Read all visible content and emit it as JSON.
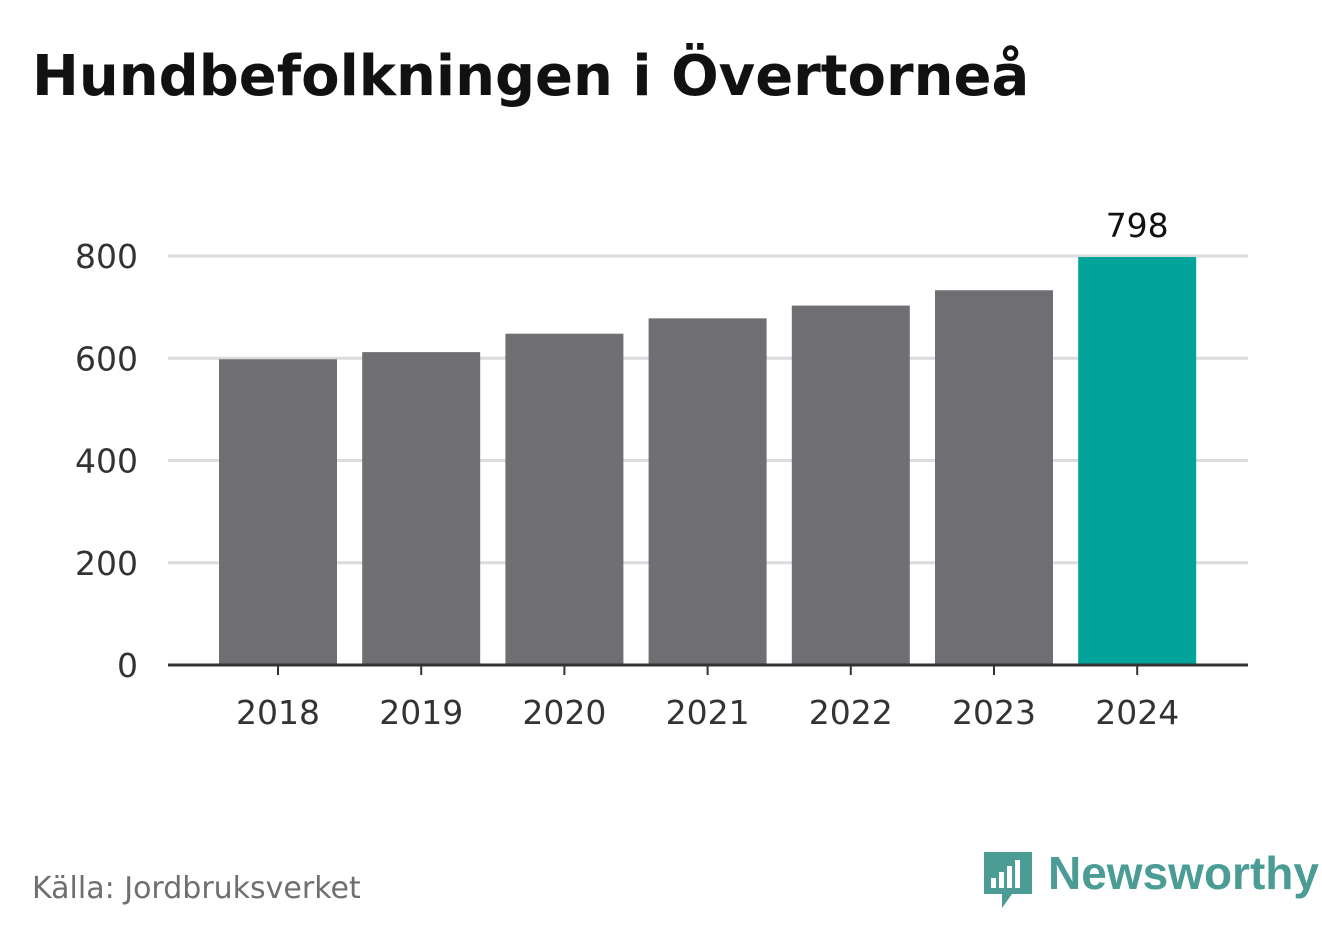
{
  "title": "Hundbefolkningen i Övertorneå",
  "source": "Källa: Jordbruksverket",
  "brand": {
    "name": "Newsworthy",
    "icon": "newsworthy-logo-icon",
    "color": "#4a9c95"
  },
  "colors": {
    "bar": "#6f6e73",
    "highlight": "#00a49a",
    "grid": "#dcdcdc",
    "axis": "#333333"
  },
  "chart_data": {
    "type": "bar",
    "categories": [
      "2018",
      "2019",
      "2020",
      "2021",
      "2022",
      "2023",
      "2024"
    ],
    "values": [
      598,
      612,
      648,
      678,
      703,
      733,
      798
    ],
    "highlight_index": 6,
    "labels": [
      {
        "category": "2024",
        "text": "798"
      }
    ],
    "ylim": [
      0,
      800
    ],
    "yticks": [
      0,
      200,
      400,
      600,
      800
    ],
    "xlabel": "",
    "ylabel": "",
    "grid": true,
    "legend": "none"
  }
}
